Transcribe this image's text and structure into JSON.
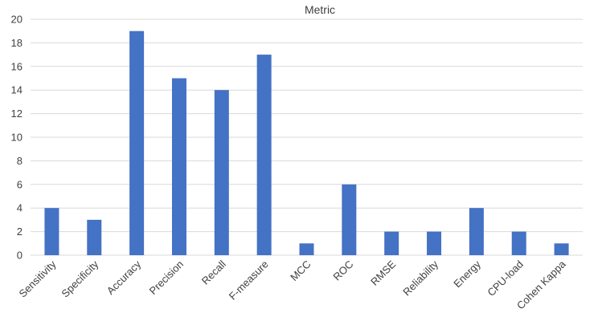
{
  "chart_data": {
    "type": "bar",
    "title": "Metric",
    "xlabel": "",
    "ylabel": "",
    "ylim": [
      0,
      20
    ],
    "yticks": [
      0,
      2,
      4,
      6,
      8,
      10,
      12,
      14,
      16,
      18,
      20
    ],
    "categories": [
      "Sensitivity",
      "Specificity",
      "Accuracy",
      "Precision",
      "Recall",
      "F-measure",
      "MCC",
      "ROC",
      "RMSE",
      "Reliability",
      "Energy",
      "CPU-load",
      "Cohen Kappa"
    ],
    "values": [
      4,
      3,
      19,
      15,
      14,
      17,
      1,
      6,
      2,
      2,
      4,
      2,
      1
    ],
    "grid": true,
    "legend": "none",
    "bar_color": "#4472c4"
  }
}
